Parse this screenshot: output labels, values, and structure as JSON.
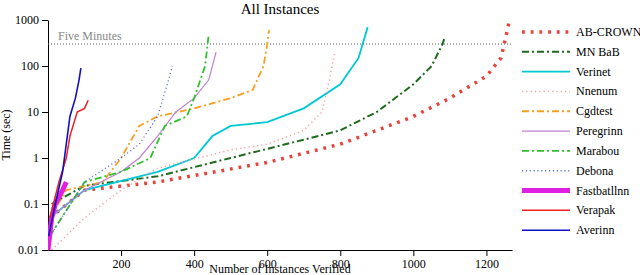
{
  "chart_data": {
    "type": "line",
    "title": "All Instances",
    "x_label": "Number of Instances Verified",
    "y_label": "Time (sec)",
    "log": "y",
    "grid": false,
    "legend": "right",
    "xlim": [
      0,
      1270
    ],
    "xticks": [
      200,
      400,
      600,
      800,
      1000,
      1200
    ],
    "ylim": [
      0.01,
      1000
    ],
    "yticks": [
      0.01,
      0.1,
      1,
      10,
      100,
      1000
    ],
    "annotations": [
      {
        "text": "Five Minutes",
        "y": 300
      }
    ],
    "series": [
      {
        "name": "AB-CROWN",
        "color": "#e8413a",
        "line_style": "dotted",
        "x": [
          5,
          100,
          300,
          600,
          800,
          1000,
          1100,
          1200,
          1240,
          1255,
          1262
        ],
        "values": [
          0.05,
          0.2,
          0.3,
          0.8,
          2,
          8,
          20,
          60,
          150,
          500,
          900
        ]
      },
      {
        "name": "MN BaB",
        "color": "#1e6b1e",
        "line_style": "dash-dot",
        "x": [
          10,
          100,
          300,
          500,
          700,
          800,
          900,
          1000,
          1050,
          1080,
          1085
        ],
        "values": [
          0.1,
          0.25,
          0.4,
          1,
          2.5,
          4,
          10,
          40,
          100,
          300,
          400
        ]
      },
      {
        "name": "Verinet",
        "color": "#00c8d4",
        "line_style": "solid",
        "x": [
          5,
          100,
          300,
          400,
          450,
          500,
          600,
          700,
          800,
          850,
          875
        ],
        "values": [
          0.05,
          0.2,
          0.5,
          1,
          3,
          5,
          6,
          12,
          40,
          150,
          700
        ]
      },
      {
        "name": "Nnenum",
        "color": "#f4a0a0",
        "line_style": "dotted",
        "x": [
          10,
          100,
          200,
          300,
          500,
          600,
          700,
          750,
          770,
          785
        ],
        "values": [
          0.01,
          0.05,
          0.2,
          0.6,
          1.5,
          2,
          4,
          10,
          50,
          200
        ]
      },
      {
        "name": "Cgdtest",
        "color": "#f5a020",
        "line_style": "dash-dot",
        "x": [
          5,
          50,
          150,
          200,
          250,
          300,
          400,
          500,
          560,
          590,
          600,
          605
        ],
        "values": [
          0.05,
          0.2,
          0.3,
          1,
          5,
          8,
          12,
          20,
          30,
          100,
          300,
          600
        ]
      },
      {
        "name": "Peregrinn",
        "color": "#c080d0",
        "line_style": "solid",
        "x": [
          5,
          100,
          200,
          250,
          300,
          350,
          400,
          440,
          460
        ],
        "values": [
          0.05,
          0.2,
          0.5,
          1,
          3,
          10,
          20,
          50,
          200
        ]
      },
      {
        "name": "Marabou",
        "color": "#30c030",
        "line_style": "dash-dot",
        "x": [
          5,
          100,
          200,
          280,
          320,
          380,
          400,
          430,
          440
        ],
        "values": [
          0.02,
          0.3,
          0.5,
          1,
          5,
          8,
          20,
          100,
          500
        ]
      },
      {
        "name": "Debona",
        "color": "#5060e0",
        "line_style": "dotted",
        "x": [
          5,
          100,
          200,
          250,
          300,
          330,
          340
        ],
        "values": [
          0.02,
          0.3,
          1,
          2,
          8,
          50,
          100
        ]
      },
      {
        "name": "Fastbatllnn",
        "color": "#e020e0",
        "line_style": "solid",
        "x": [
          0,
          10,
          20,
          40,
          50
        ],
        "values": [
          0.01,
          0.05,
          0.1,
          0.2,
          0.3
        ]
      },
      {
        "name": "Verapak",
        "color": "#ee2020",
        "line_style": "solid",
        "x": [
          5,
          30,
          50,
          60,
          80,
          100,
          110
        ],
        "values": [
          0.05,
          0.3,
          1,
          3,
          10,
          12,
          18
        ]
      },
      {
        "name": "Averinn",
        "color": "#1010c0",
        "line_style": "solid",
        "x": [
          2,
          20,
          40,
          50,
          60,
          75,
          85,
          90
        ],
        "values": [
          0.02,
          0.1,
          0.5,
          2,
          8,
          20,
          50,
          90
        ]
      }
    ]
  }
}
